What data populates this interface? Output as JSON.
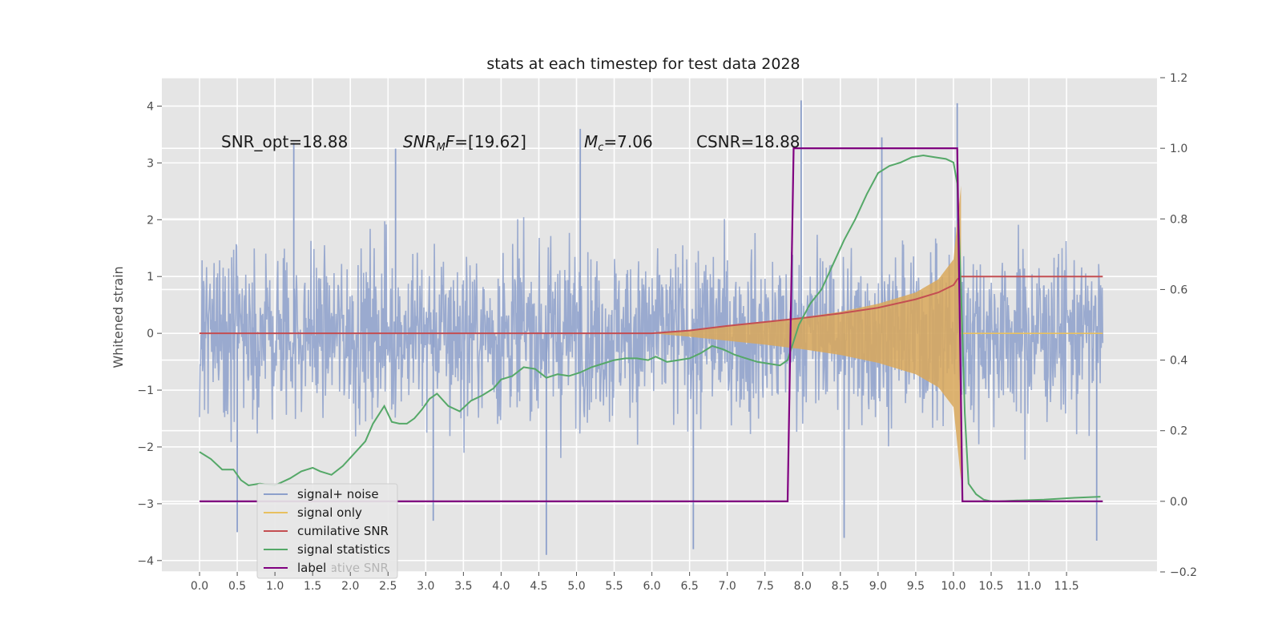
{
  "chart_data": {
    "type": "line",
    "title": "stats at each timestep for test data 2028",
    "ylabel": "Whitened strain",
    "xlabel": "",
    "xlim": [
      -0.5,
      12.7
    ],
    "ylim": [
      -4.2,
      4.5
    ],
    "y2lim": [
      -0.2,
      1.2
    ],
    "xticks": [
      0.0,
      0.5,
      1.0,
      1.5,
      2.0,
      2.5,
      3.0,
      3.5,
      4.0,
      4.5,
      5.0,
      5.5,
      6.0,
      6.5,
      7.0,
      7.5,
      8.0,
      8.5,
      9.0,
      9.5,
      10.0,
      10.5,
      11.0,
      11.5
    ],
    "xticklabels": [
      "0.0",
      "0.5",
      "1.0",
      "1.5",
      "2.0",
      "2.5",
      "3.0",
      "3.5",
      "4.0",
      "4.5",
      "5.0",
      "5.5",
      "6.0",
      "6.5",
      "7.0",
      "7.5",
      "8.0",
      "8.5",
      "9.0",
      "9.5",
      "10.0",
      "10.5",
      "11.0",
      "11.5"
    ],
    "yticks": [
      -4,
      -3,
      -2,
      -1,
      0,
      1,
      2,
      3,
      4
    ],
    "yticklabels": [
      "−4",
      "−3",
      "−2",
      "−1",
      "0",
      "1",
      "2",
      "3",
      "4"
    ],
    "y2ticks": [
      -0.2,
      0.0,
      0.2,
      0.4,
      0.6,
      0.8,
      1.0,
      1.2
    ],
    "y2ticklabels": [
      "−0.2",
      "0.0",
      "0.2",
      "0.4",
      "0.6",
      "0.8",
      "1.0",
      "1.2"
    ],
    "grid": true,
    "legend_position": "lower-left",
    "annotations": {
      "snr_opt": "SNR_opt=18.88",
      "snr_mf_base": "SNR",
      "snr_mf_sub": "M",
      "snr_mf_rest": "F=[19.62]",
      "mc_base": "M",
      "mc_sub": "c",
      "mc_rest": "=7.06",
      "csnr": "CSNR=18.88"
    },
    "legend_underlay_text": "cumilative SNR",
    "series": [
      {
        "name": "signal+ noise",
        "axis": "left",
        "color": "#8da0cb",
        "style": "noise",
        "description_values": "random whitened strain, envelope about ±2.3 with spikes to about ±4",
        "x_range": [
          0.0,
          11.98
        ],
        "spike_points": [
          [
            7.98,
            4.1
          ],
          [
            10.05,
            4.05
          ],
          [
            4.6,
            -3.9
          ],
          [
            6.55,
            -3.8
          ],
          [
            11.9,
            -3.65
          ],
          [
            0.5,
            -3.5
          ],
          [
            1.25,
            3.35
          ],
          [
            5.05,
            3.6
          ],
          [
            9.05,
            3.45
          ],
          [
            3.1,
            -3.3
          ],
          [
            2.6,
            3.25
          ],
          [
            8.55,
            -3.6
          ]
        ]
      },
      {
        "name": "signal only",
        "axis": "left",
        "color": "#e8c060",
        "fill": "#d9a85a",
        "style": "chirp",
        "envelope": {
          "x": [
            6.0,
            6.5,
            7.0,
            7.5,
            8.0,
            8.5,
            9.0,
            9.5,
            9.8,
            10.0,
            10.1
          ],
          "amp": [
            0.0,
            0.06,
            0.13,
            0.2,
            0.28,
            0.38,
            0.52,
            0.72,
            0.95,
            1.3,
            2.6
          ]
        },
        "after_merger": {
          "x": [
            10.1,
            11.98
          ],
          "value": 0.0
        }
      },
      {
        "name": "cumilative SNR",
        "axis": "left",
        "color": "#c44e52",
        "x": [
          0.0,
          2.0,
          4.0,
          6.0,
          6.5,
          7.0,
          7.5,
          8.0,
          8.5,
          9.0,
          9.5,
          9.8,
          10.0,
          10.05,
          10.1,
          11.98
        ],
        "y": [
          0.0,
          0.0,
          0.0,
          0.0,
          0.05,
          0.13,
          0.2,
          0.27,
          0.35,
          0.45,
          0.6,
          0.72,
          0.85,
          0.95,
          1.0,
          1.0
        ]
      },
      {
        "name": "signal statistics",
        "axis": "right",
        "color": "#55a868",
        "x": [
          0.0,
          0.15,
          0.3,
          0.45,
          0.55,
          0.65,
          0.8,
          1.0,
          1.2,
          1.35,
          1.5,
          1.6,
          1.75,
          1.9,
          2.05,
          2.2,
          2.3,
          2.45,
          2.55,
          2.65,
          2.75,
          2.85,
          2.95,
          3.05,
          3.15,
          3.3,
          3.45,
          3.6,
          3.75,
          3.9,
          4.0,
          4.15,
          4.3,
          4.45,
          4.6,
          4.75,
          4.9,
          5.05,
          5.2,
          5.35,
          5.5,
          5.65,
          5.8,
          5.95,
          6.05,
          6.2,
          6.35,
          6.5,
          6.65,
          6.8,
          6.95,
          7.1,
          7.25,
          7.4,
          7.55,
          7.7,
          7.8,
          7.95,
          8.1,
          8.25,
          8.4,
          8.55,
          8.7,
          8.85,
          9.0,
          9.15,
          9.3,
          9.45,
          9.6,
          9.75,
          9.9,
          10.0,
          10.05,
          10.1,
          10.15,
          10.2,
          10.3,
          10.4,
          10.5,
          10.6,
          10.8,
          11.2,
          11.6,
          11.95
        ],
        "y": [
          0.14,
          0.12,
          0.09,
          0.09,
          0.06,
          0.045,
          0.05,
          0.045,
          0.065,
          0.085,
          0.095,
          0.085,
          0.075,
          0.1,
          0.135,
          0.17,
          0.22,
          0.27,
          0.225,
          0.22,
          0.22,
          0.235,
          0.26,
          0.29,
          0.305,
          0.27,
          0.255,
          0.285,
          0.3,
          0.32,
          0.345,
          0.355,
          0.38,
          0.375,
          0.35,
          0.36,
          0.355,
          0.365,
          0.38,
          0.39,
          0.4,
          0.405,
          0.405,
          0.4,
          0.41,
          0.395,
          0.4,
          0.405,
          0.42,
          0.44,
          0.43,
          0.415,
          0.405,
          0.395,
          0.39,
          0.385,
          0.4,
          0.5,
          0.56,
          0.6,
          0.67,
          0.74,
          0.8,
          0.87,
          0.93,
          0.95,
          0.96,
          0.975,
          0.98,
          0.975,
          0.97,
          0.96,
          0.9,
          0.6,
          0.25,
          0.05,
          0.02,
          0.005,
          0.0,
          0.0,
          0.002,
          0.005,
          0.01,
          0.013
        ]
      },
      {
        "name": "label",
        "axis": "right",
        "color": "#800080",
        "x": [
          0.0,
          7.8,
          7.88,
          10.05,
          10.12,
          11.98
        ],
        "y": [
          0.0,
          0.0,
          1.0,
          1.0,
          0.0,
          0.0
        ]
      }
    ]
  }
}
